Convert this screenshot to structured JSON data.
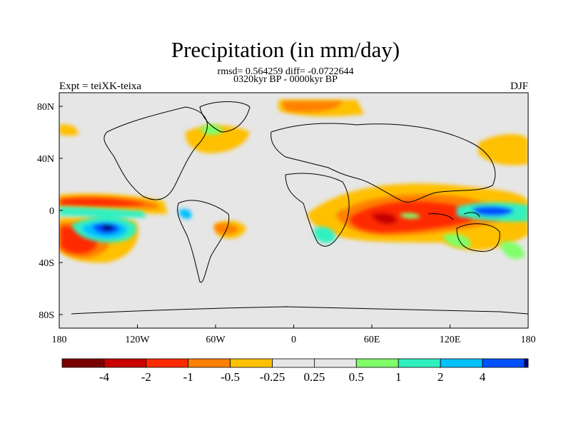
{
  "header": {
    "title": "Precipitation (in mm/day)",
    "stats_line": "rmsd= 0.564259 diff= -0.0722644",
    "period_line": "0320kyr BP - 0000kyr BP",
    "experiment": "Expt = teiXK-teixa",
    "season": "DJF"
  },
  "axes": {
    "x_ticks": [
      "180",
      "120W",
      "60W",
      "0",
      "60E",
      "120E",
      "180"
    ],
    "y_ticks": [
      "80N",
      "40N",
      "0",
      "40S",
      "80S"
    ]
  },
  "colorbar": {
    "colors": [
      "#7a0000",
      "#c80000",
      "#ff2a00",
      "#ff8000",
      "#ffc000",
      "#e6e6e6",
      "#e6e6e6",
      "#80ff6a",
      "#30f0c0",
      "#00c0ff",
      "#0050ff",
      "#000080"
    ],
    "labels": [
      "-4",
      "-2",
      "-1",
      "-0.5",
      "-0.25",
      "0.25",
      "0.5",
      "1",
      "2",
      "4"
    ]
  },
  "map_data": {
    "background_color": "#e6e6e6",
    "anomaly_regions": [
      {
        "region": "North Pacific subtropics",
        "level": "-1"
      },
      {
        "region": "South Pacific subtropics",
        "level": "-1"
      },
      {
        "region": "South Pacific (west of South America)",
        "level": "4"
      },
      {
        "region": "Indian Ocean",
        "level": "-1"
      },
      {
        "region": "Maritime Continent / North Australia",
        "level": "2"
      },
      {
        "region": "Greenland / Arctic",
        "level": "-0.5"
      }
    ]
  }
}
